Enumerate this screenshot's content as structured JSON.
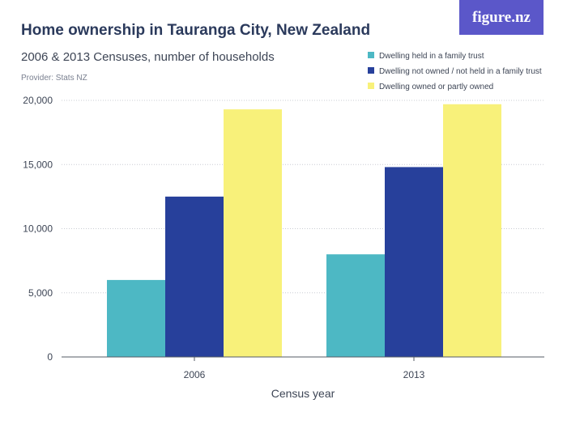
{
  "header": {
    "title": "Home ownership in Tauranga City, New Zealand",
    "subtitle": "2006 & 2013 Censuses, number of households",
    "provider": "Provider: Stats NZ",
    "brand": "figure.nz",
    "brand_color": "#5b57c9"
  },
  "chart_data": {
    "type": "bar",
    "title": "Home ownership in Tauranga City, New Zealand",
    "subtitle": "2006 & 2013 Censuses, number of households",
    "xlabel": "Census year",
    "ylabel": "",
    "categories": [
      "2006",
      "2013"
    ],
    "ylim": [
      0,
      20000
    ],
    "yticks": [
      0,
      5000,
      10000,
      15000,
      20000
    ],
    "ytick_labels": [
      "0",
      "5,000",
      "10,000",
      "15,000",
      "20,000"
    ],
    "grid": true,
    "legend_position": "top-right",
    "series": [
      {
        "name": "Dwelling held in a family trust",
        "color": "#4db8c4",
        "values": [
          6000,
          8000
        ]
      },
      {
        "name": "Dwelling not owned / not held in a family trust",
        "color": "#27409b",
        "values": [
          12500,
          14800
        ]
      },
      {
        "name": "Dwelling owned or partly owned",
        "color": "#f8f17a",
        "values": [
          19300,
          19700
        ]
      }
    ]
  }
}
